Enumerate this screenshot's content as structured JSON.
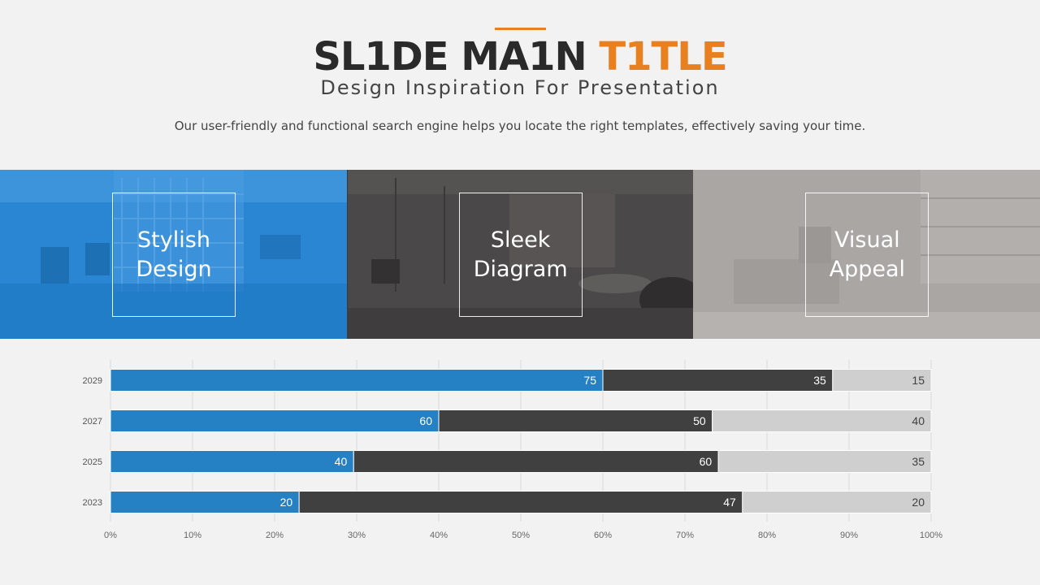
{
  "slide": {
    "title_main": "SL1DE MA1N ",
    "title_highlight": "T1TLE",
    "subtitle": "Design Inspiration For Presentation",
    "description": "Our user-friendly and functional search engine helps you locate the right templates, effectively saving your time."
  },
  "panels": [
    {
      "label": "Stylish\nDesign",
      "color": "#2a86d3"
    },
    {
      "label": "Sleek\nDiagram",
      "color": "#4a4848"
    },
    {
      "label": "Visual\nAppeal",
      "color": "#a9a6a4"
    }
  ],
  "colors": {
    "accent": "#e8801f",
    "blue": "#2581c4",
    "dark": "#404040",
    "light": "#d0cfcf"
  },
  "chart_data": {
    "type": "bar",
    "orientation": "horizontal",
    "stacked": "percent",
    "categories": [
      "2029",
      "2027",
      "2025",
      "2023"
    ],
    "series": [
      {
        "values": [
          75,
          60,
          40,
          20
        ],
        "color": "#2581c4"
      },
      {
        "values": [
          35,
          50,
          60,
          47
        ],
        "color": "#404040"
      },
      {
        "values": [
          15,
          40,
          35,
          20
        ],
        "color": "#d0cfcf"
      }
    ],
    "x_ticks": [
      "0%",
      "10%",
      "20%",
      "30%",
      "40%",
      "50%",
      "60%",
      "70%",
      "80%",
      "90%",
      "100%"
    ],
    "xlim": [
      0,
      100
    ],
    "grid": true,
    "legend": "none"
  }
}
